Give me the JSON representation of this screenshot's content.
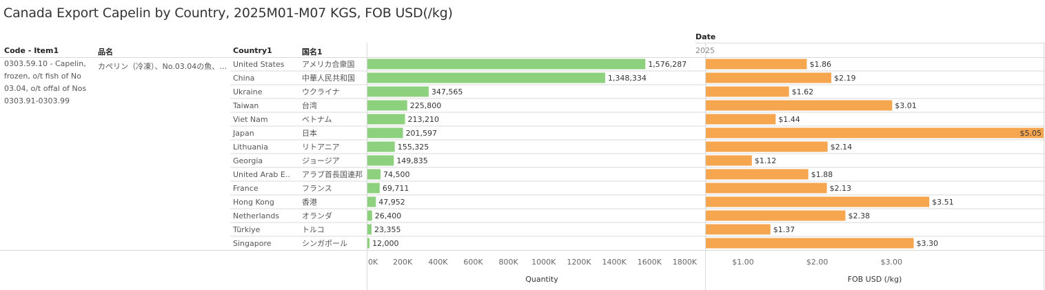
{
  "title": "Canada Export Capelin by Country, 2025M01-M07 KGS, FOB USD(/kg)",
  "headers": {
    "code": "Code - Item1",
    "hinmei": "品名",
    "country": "Country1",
    "kokumei": "国名1",
    "date": "Date",
    "year": "2025"
  },
  "item": {
    "code_desc": "0303.59.10 - Capelin, frozen, o/t fish of No 03.04, o/t offal of Nos 0303.91-0303.99",
    "hinmei": "カペリン（冷凍）、No.03.04の魚、N.."
  },
  "colors": {
    "quantity": "#8dd17e",
    "fob": "#f7a650"
  },
  "chart_data": [
    {
      "type": "bar",
      "orientation": "horizontal",
      "xlabel": "Quantity",
      "xlim": [
        0,
        1900000
      ],
      "ticks": [
        0,
        200000,
        400000,
        600000,
        800000,
        1000000,
        1200000,
        1400000,
        1600000,
        1800000
      ],
      "tick_labels": [
        "0K",
        "200K",
        "400K",
        "600K",
        "800K",
        "1000K",
        "1200K",
        "1400K",
        "1600K",
        "1800K"
      ],
      "categories": [
        "United States",
        "China",
        "Ukraine",
        "Taiwan",
        "Viet Nam",
        "Japan",
        "Lithuania",
        "Georgia",
        "United Arab E..",
        "France",
        "Hong Kong",
        "Netherlands",
        "Türkiye",
        "Singapore"
      ],
      "categories_ja": [
        "アメリカ合衆国",
        "中華人民共和国",
        "ウクライナ",
        "台湾",
        "ベトナム",
        "日本",
        "リトアニア",
        "ジョージア",
        "アラブ首長国連邦",
        "フランス",
        "香港",
        "オランダ",
        "トルコ",
        "シンガポール"
      ],
      "values": [
        1576287,
        1348334,
        347565,
        225800,
        213210,
        201597,
        155325,
        149835,
        74500,
        69711,
        47952,
        26400,
        23355,
        12000
      ],
      "labels": [
        "1,576,287",
        "1,348,334",
        "347,565",
        "225,800",
        "213,210",
        "201,597",
        "155,325",
        "149,835",
        "74,500",
        "69,711",
        "47,952",
        "26,400",
        "23,355",
        "12,000"
      ]
    },
    {
      "type": "bar",
      "orientation": "horizontal",
      "xlabel": "FOB USD (/kg)",
      "xlim": [
        0.5,
        5.05
      ],
      "ticks": [
        1.0,
        2.0,
        3.0
      ],
      "tick_labels": [
        "$1.00",
        "$2.00",
        "$3.00"
      ],
      "categories": [
        "United States",
        "China",
        "Ukraine",
        "Taiwan",
        "Viet Nam",
        "Japan",
        "Lithuania",
        "Georgia",
        "United Arab E..",
        "France",
        "Hong Kong",
        "Netherlands",
        "Türkiye",
        "Singapore"
      ],
      "values": [
        1.86,
        2.19,
        1.62,
        3.01,
        1.44,
        5.05,
        2.14,
        1.12,
        1.88,
        2.13,
        3.51,
        2.38,
        1.37,
        3.3
      ],
      "labels": [
        "$1.86",
        "$2.19",
        "$1.62",
        "$3.01",
        "$1.44",
        "$5.05",
        "$2.14",
        "$1.12",
        "$1.88",
        "$2.13",
        "$3.51",
        "$2.38",
        "$1.37",
        "$3.30"
      ]
    }
  ]
}
